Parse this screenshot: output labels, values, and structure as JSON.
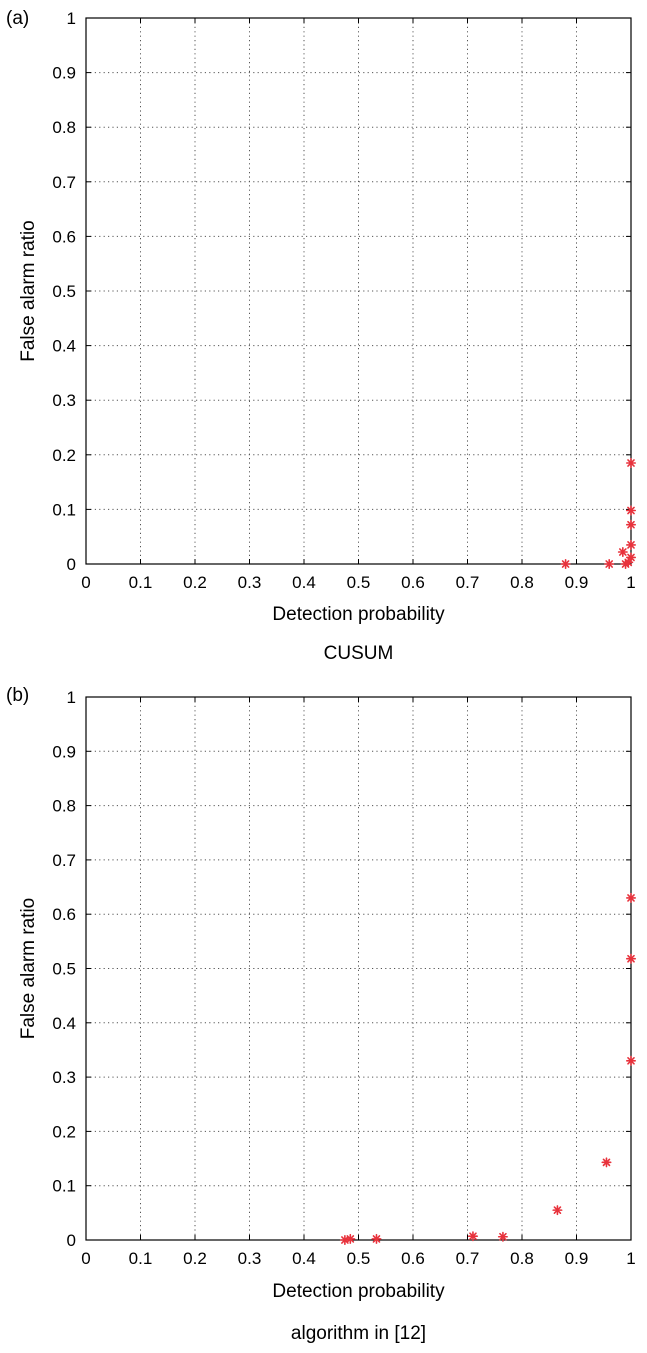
{
  "chart_data": [
    {
      "panel_label": "(a)",
      "type": "scatter",
      "caption": "CUSUM",
      "xlabel": "Detection probability",
      "ylabel": "False alarm ratio",
      "xlim": [
        0,
        1
      ],
      "ylim": [
        0,
        1
      ],
      "x_ticks": [
        "0",
        "0.1",
        "0.2",
        "0.3",
        "0.4",
        "0.5",
        "0.6",
        "0.7",
        "0.8",
        "0.9",
        "1"
      ],
      "y_ticks": [
        "0",
        "0.1",
        "0.2",
        "0.3",
        "0.4",
        "0.5",
        "0.6",
        "0.7",
        "0.8",
        "0.9",
        "1"
      ],
      "grid": true,
      "marker": "*",
      "marker_color": "#e8323c",
      "series": [
        {
          "points": [
            {
              "x": 0.88,
              "y": 0.0
            },
            {
              "x": 0.96,
              "y": 0.0
            },
            {
              "x": 0.99,
              "y": 0.0
            },
            {
              "x": 0.985,
              "y": 0.022
            },
            {
              "x": 0.995,
              "y": 0.003
            },
            {
              "x": 1.0,
              "y": 0.012
            },
            {
              "x": 1.0,
              "y": 0.035
            },
            {
              "x": 1.0,
              "y": 0.072
            },
            {
              "x": 1.0,
              "y": 0.098
            },
            {
              "x": 1.0,
              "y": 0.185
            }
          ]
        }
      ]
    },
    {
      "panel_label": "(b)",
      "type": "scatter",
      "caption": "algorithm in [12]",
      "xlabel": "Detection probability",
      "ylabel": "False alarm ratio",
      "xlim": [
        0,
        1
      ],
      "ylim": [
        0,
        1
      ],
      "x_ticks": [
        "0",
        "0.1",
        "0.2",
        "0.3",
        "0.4",
        "0.5",
        "0.6",
        "0.7",
        "0.8",
        "0.9",
        "1"
      ],
      "y_ticks": [
        "0",
        "0.1",
        "0.2",
        "0.3",
        "0.4",
        "0.5",
        "0.6",
        "0.7",
        "0.8",
        "0.9",
        "1"
      ],
      "grid": true,
      "marker": "*",
      "marker_color": "#e8323c",
      "series": [
        {
          "points": [
            {
              "x": 0.475,
              "y": 0.0
            },
            {
              "x": 0.485,
              "y": 0.002
            },
            {
              "x": 0.533,
              "y": 0.002
            },
            {
              "x": 0.71,
              "y": 0.007
            },
            {
              "x": 0.765,
              "y": 0.006
            },
            {
              "x": 0.865,
              "y": 0.055
            },
            {
              "x": 0.955,
              "y": 0.143
            },
            {
              "x": 1.0,
              "y": 0.33
            },
            {
              "x": 1.0,
              "y": 0.518
            },
            {
              "x": 1.0,
              "y": 0.63
            }
          ]
        }
      ]
    }
  ]
}
